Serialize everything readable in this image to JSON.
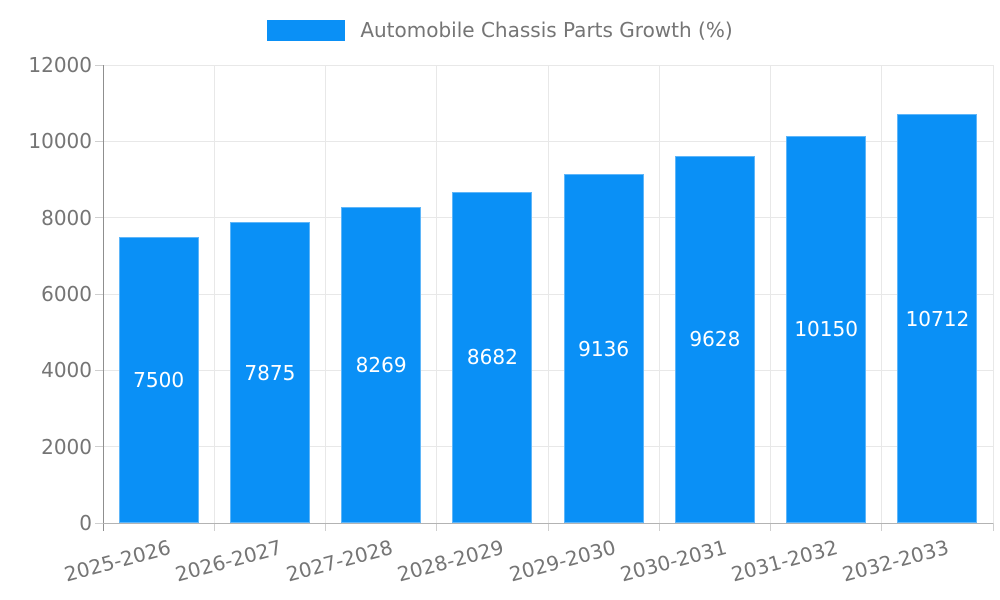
{
  "chart_data": {
    "type": "bar",
    "title": "Automobile Chassis Parts Growth (%)",
    "legend": {
      "position": "top",
      "label": "Automobile Chassis Parts Growth (%)"
    },
    "categories": [
      "2025-2026",
      "2026-2027",
      "2027-2028",
      "2028-2029",
      "2029-2030",
      "2030-2031",
      "2031-2032",
      "2032-2033"
    ],
    "series": [
      {
        "name": "Automobile Chassis Parts Growth (%)",
        "values": [
          7500,
          7875,
          8269,
          8682,
          9136,
          9628,
          10150,
          10712
        ]
      }
    ],
    "value_labels": [
      "7500",
      "7875",
      "8269",
      "8682",
      "9136",
      "9628",
      "10150",
      "10712"
    ],
    "xlabel": "",
    "ylabel": "",
    "ylim": [
      0,
      12000
    ],
    "yticks": [
      0,
      2000,
      4000,
      6000,
      8000,
      10000,
      12000
    ],
    "ytick_labels": [
      "0",
      "2000",
      "4000",
      "6000",
      "8000",
      "10000",
      "12000"
    ],
    "grid": true,
    "colors": {
      "bar": "#0a90f6",
      "grid": "#e8e8e8",
      "axis_y": "#8f8f8f",
      "axis_x": "#b3b3b3",
      "tick": "#cfcfcf",
      "label_text": "#757575",
      "value_text": "#ffffff",
      "background": "#ffffff"
    }
  }
}
